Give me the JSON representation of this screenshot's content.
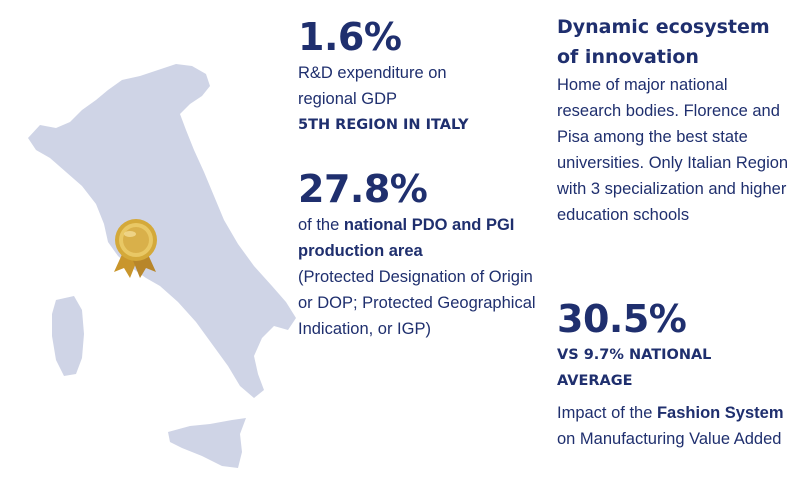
{
  "colors": {
    "navy": "#1f2f6e",
    "map_fill": "#cfd4e6",
    "medal_gold": "#d4a93a"
  },
  "icons": {
    "map": "italy-map",
    "medal": "gold-medal-icon"
  },
  "stat_rd": {
    "value": "1.6%",
    "line1": "R&D expenditure on",
    "line2": "regional GDP",
    "rank": "5TH REGION IN ITALY"
  },
  "stat_pdo": {
    "value": "27.8%",
    "prefix": "of the ",
    "bold": "national PDO and PGI production area",
    "detail": "(Protected Designation of Origin or DOP; Protected Geographical Indication, or IGP)"
  },
  "innovation": {
    "title": "Dynamic ecosystem of innovation",
    "text": "Home of major national research bodies. Florence and Pisa among the best state universities. Only Italian Region with 3 specialization and higher education schools"
  },
  "stat_fashion": {
    "value": "30.5%",
    "comparison": "VS 9.7% NATIONAL AVERAGE",
    "prefix": "Impact of the ",
    "bold": "Fashion System",
    "suffix": " on Manufacturing Value Added"
  }
}
